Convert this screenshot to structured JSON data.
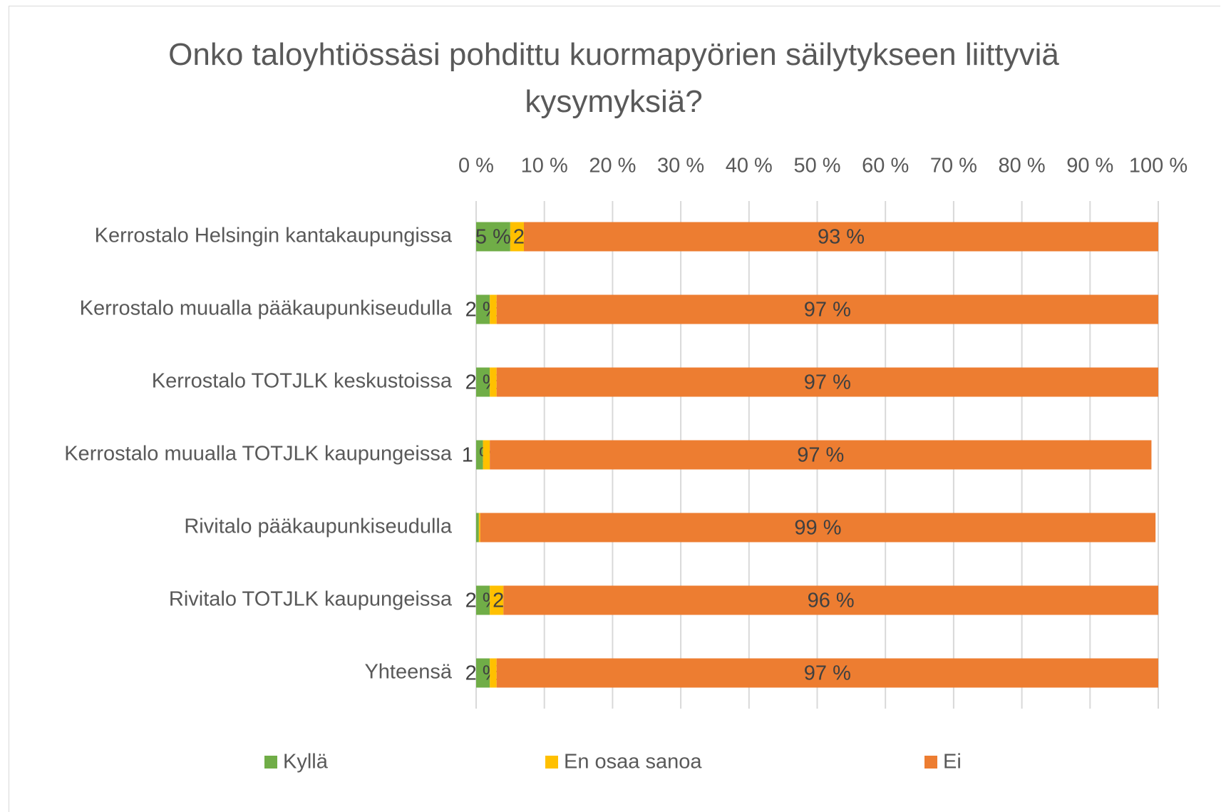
{
  "chart_data": {
    "type": "stacked_bar_horizontal",
    "title": "Onko taloyhtiössäsi pohdittu kuormapyörien säilytykseen liittyviä kysymyksiä?",
    "categories": [
      "Kerrostalo Helsingin kantakaupungissa",
      "Kerrostalo muualla pääkaupunkiseudulla",
      "Kerrostalo TOTJLK keskustoissa",
      "Kerrostalo muualla TOTJLK kaupungeissa",
      "Rivitalo pääkaupunkiseudulla",
      "Rivitalo TOTJLK kaupungeissa",
      "Yhteensä"
    ],
    "series": [
      {
        "name": "Kyllä",
        "color": "#70ad47",
        "values": [
          5,
          2,
          2,
          1,
          0.4,
          2,
          2
        ],
        "value_labels": [
          "5 %",
          "2 %",
          "2 %",
          "1 %",
          null,
          "2 %",
          "2 %"
        ]
      },
      {
        "name": "En osaa sanoa",
        "color": "#ffc000",
        "values": [
          2,
          1,
          1,
          1,
          0.2,
          2,
          1
        ],
        "value_labels": [
          "2 %",
          "1 %",
          "1 %",
          "1 %",
          null,
          "2 %",
          "1 %"
        ]
      },
      {
        "name": "Ei",
        "color": "#ed7d31",
        "values": [
          93,
          97,
          97,
          97,
          99,
          96,
          97
        ],
        "value_labels": [
          "93 %",
          "97 %",
          "97 %",
          "97 %",
          "99 %",
          "96 %",
          "97 %"
        ]
      }
    ],
    "xlim": [
      0,
      100
    ],
    "xticks": [
      {
        "value": 0,
        "label": "0 %"
      },
      {
        "value": 10,
        "label": "10 %"
      },
      {
        "value": 20,
        "label": "20 %"
      },
      {
        "value": 30,
        "label": "30 %"
      },
      {
        "value": 40,
        "label": "40 %"
      },
      {
        "value": 50,
        "label": "50 %"
      },
      {
        "value": 60,
        "label": "60 %"
      },
      {
        "value": 70,
        "label": "70 %"
      },
      {
        "value": 80,
        "label": "80 %"
      },
      {
        "value": 90,
        "label": "90 %"
      },
      {
        "value": 100,
        "label": "100 %"
      }
    ],
    "grid": true,
    "legend": "bottom"
  }
}
